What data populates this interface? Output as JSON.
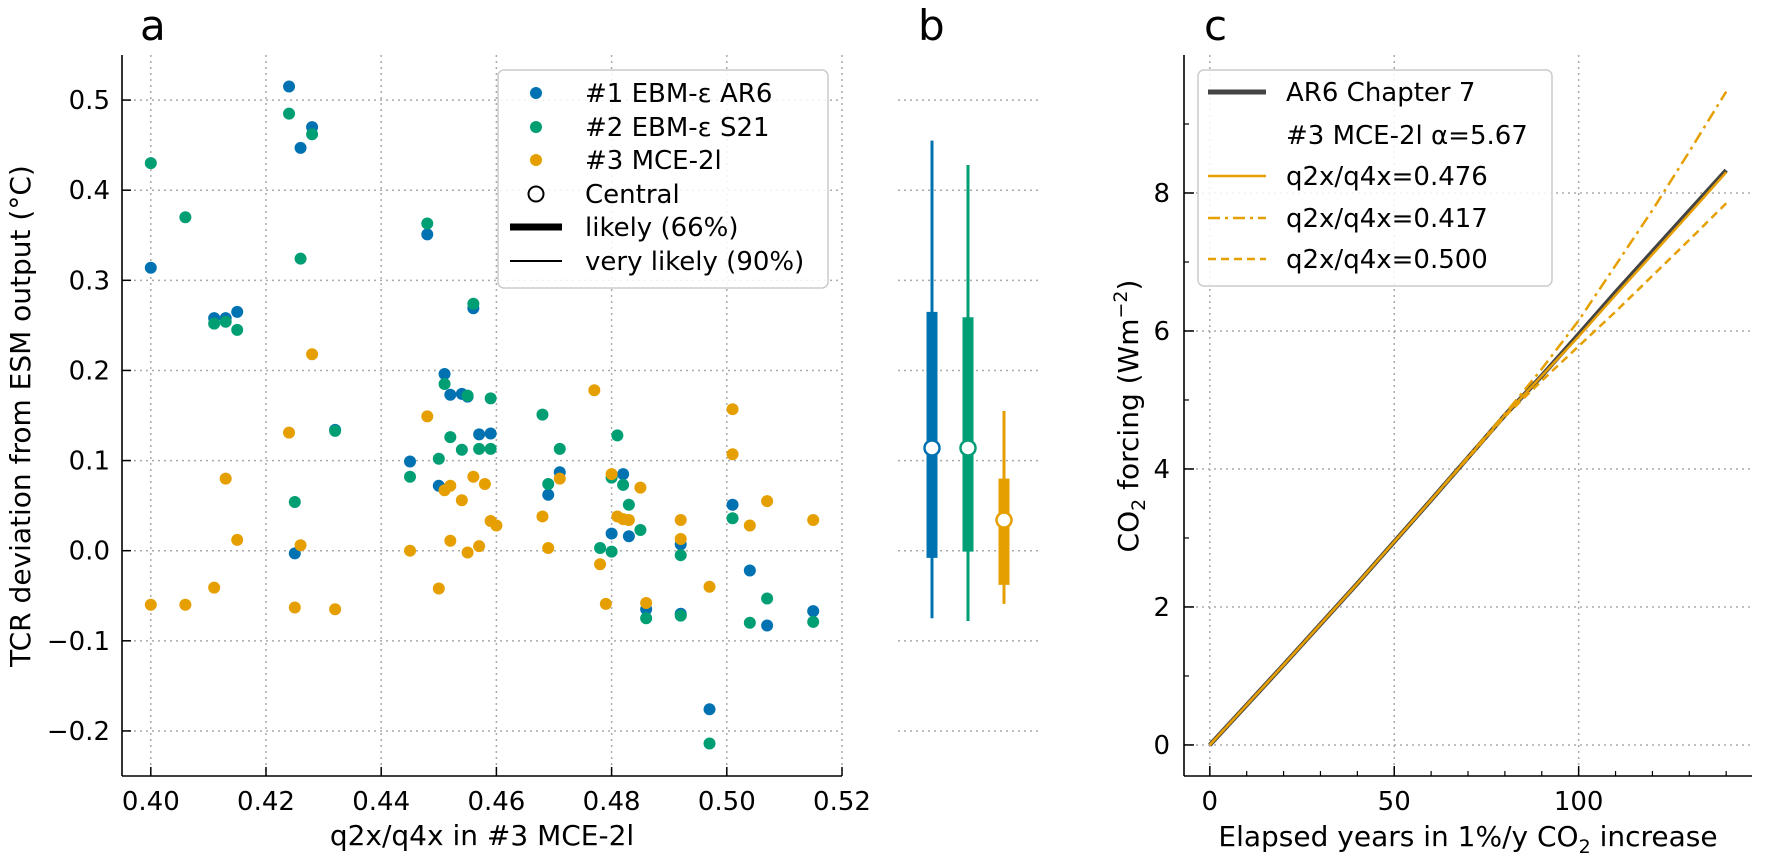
{
  "colors": {
    "ar6": "#0072b2",
    "s21": "#009e73",
    "mce": "#e69f00",
    "ar6_line": "#444444",
    "grid": "#aaaaaa"
  },
  "panel_a": {
    "letter": "a",
    "xlabel": "q2x/q4x in #3 MCE-2l",
    "ylabel": "TCR deviation from ESM output (°C)",
    "legend": {
      "items": [
        {
          "label": "#1 EBM-ε AR6",
          "marker": "dot",
          "color": "#0072b2"
        },
        {
          "label": "#2 EBM-ε S21",
          "marker": "dot",
          "color": "#009e73"
        },
        {
          "label": "#3 MCE-2l",
          "marker": "dot",
          "color": "#e69f00"
        },
        {
          "label": "Central",
          "marker": "open-circle",
          "color": "#000000"
        },
        {
          "label": "likely (66%)",
          "marker": "thick-line",
          "color": "#000000"
        },
        {
          "label": "very likely (90%)",
          "marker": "thin-line",
          "color": "#000000"
        }
      ]
    }
  },
  "panel_b": {
    "letter": "b"
  },
  "panel_c": {
    "letter": "c",
    "xlabel": "Elapsed years in 1%/y CO",
    "xlabel_sub": "2",
    "xlabel_tail": " increase",
    "ylabel": "CO",
    "ylabel_sub": "2",
    "ylabel_tail": " forcing (Wm",
    "ylabel_sup": "−2",
    "ylabel_end": ")",
    "legend": {
      "items": [
        {
          "label": "AR6 Chapter 7",
          "style": "thick",
          "color": "#444444"
        },
        {
          "label": "#3 MCE-2l α=5.67",
          "style": "none",
          "color": "#ffffff"
        },
        {
          "label": "q2x/q4x=0.476",
          "style": "solid",
          "color": "#e69f00"
        },
        {
          "label": "q2x/q4x=0.417",
          "style": "dashdot",
          "color": "#e69f00"
        },
        {
          "label": "q2x/q4x=0.500",
          "style": "dashed",
          "color": "#e69f00"
        }
      ]
    }
  },
  "chart_data": [
    {
      "type": "scatter",
      "xlim": [
        0.395,
        0.52
      ],
      "ylim": [
        -0.25,
        0.55
      ],
      "xticks": [
        "0.40",
        "0.42",
        "0.44",
        "0.46",
        "0.48",
        "0.50",
        "0.52"
      ],
      "yticks": [
        "−0.2",
        "−0.1",
        "0.0",
        "0.1",
        "0.2",
        "0.3",
        "0.4",
        "0.5"
      ],
      "xtick_values": [
        0.4,
        0.42,
        0.44,
        0.46,
        0.48,
        0.5,
        0.52
      ],
      "ytick_values": [
        -0.2,
        -0.1,
        0.0,
        0.1,
        0.2,
        0.3,
        0.4,
        0.5
      ],
      "grid": true,
      "legend": "top-right",
      "series": [
        {
          "name": "#1 EBM-ε AR6",
          "points": [
            [
              0.4,
              0.314
            ],
            [
              0.411,
              0.258
            ],
            [
              0.413,
              0.258
            ],
            [
              0.415,
              0.265
            ],
            [
              0.424,
              0.515
            ],
            [
              0.425,
              -0.003
            ],
            [
              0.426,
              0.447
            ],
            [
              0.428,
              0.47
            ],
            [
              0.432,
              0.134
            ],
            [
              0.445,
              0.099
            ],
            [
              0.448,
              0.351
            ],
            [
              0.45,
              0.072
            ],
            [
              0.451,
              0.196
            ],
            [
              0.452,
              0.173
            ],
            [
              0.454,
              0.174
            ],
            [
              0.455,
              0.171
            ],
            [
              0.456,
              0.269
            ],
            [
              0.457,
              0.129
            ],
            [
              0.459,
              0.13
            ],
            [
              0.469,
              0.062
            ],
            [
              0.471,
              0.087
            ],
            [
              0.48,
              0.019
            ],
            [
              0.482,
              0.085
            ],
            [
              0.483,
              0.016
            ],
            [
              0.486,
              -0.065
            ],
            [
              0.492,
              0.007
            ],
            [
              0.492,
              -0.07
            ],
            [
              0.497,
              -0.176
            ],
            [
              0.501,
              0.051
            ],
            [
              0.504,
              -0.022
            ],
            [
              0.507,
              -0.083
            ],
            [
              0.515,
              -0.067
            ]
          ]
        },
        {
          "name": "#2 EBM-ε S21",
          "points": [
            [
              0.4,
              0.43
            ],
            [
              0.406,
              0.37
            ],
            [
              0.411,
              0.252
            ],
            [
              0.413,
              0.254
            ],
            [
              0.415,
              0.245
            ],
            [
              0.424,
              0.485
            ],
            [
              0.425,
              0.054
            ],
            [
              0.426,
              0.324
            ],
            [
              0.428,
              0.462
            ],
            [
              0.432,
              0.133
            ],
            [
              0.445,
              0.082
            ],
            [
              0.448,
              0.363
            ],
            [
              0.45,
              0.102
            ],
            [
              0.451,
              0.185
            ],
            [
              0.452,
              0.126
            ],
            [
              0.454,
              0.112
            ],
            [
              0.455,
              0.172
            ],
            [
              0.456,
              0.274
            ],
            [
              0.457,
              0.113
            ],
            [
              0.459,
              0.169
            ],
            [
              0.459,
              0.113
            ],
            [
              0.468,
              0.151
            ],
            [
              0.469,
              0.074
            ],
            [
              0.471,
              0.113
            ],
            [
              0.478,
              0.003
            ],
            [
              0.48,
              0.081
            ],
            [
              0.48,
              -0.001
            ],
            [
              0.481,
              0.128
            ],
            [
              0.482,
              0.073
            ],
            [
              0.483,
              0.051
            ],
            [
              0.485,
              0.023
            ],
            [
              0.486,
              -0.075
            ],
            [
              0.492,
              -0.005
            ],
            [
              0.492,
              -0.072
            ],
            [
              0.497,
              -0.214
            ],
            [
              0.501,
              0.036
            ],
            [
              0.504,
              -0.08
            ],
            [
              0.507,
              -0.053
            ],
            [
              0.515,
              -0.079
            ]
          ]
        },
        {
          "name": "#3 MCE-2l",
          "points": [
            [
              0.4,
              -0.06
            ],
            [
              0.406,
              -0.06
            ],
            [
              0.411,
              -0.041
            ],
            [
              0.413,
              0.08
            ],
            [
              0.415,
              0.012
            ],
            [
              0.424,
              0.131
            ],
            [
              0.425,
              -0.063
            ],
            [
              0.426,
              0.006
            ],
            [
              0.428,
              0.218
            ],
            [
              0.432,
              -0.065
            ],
            [
              0.445,
              0.0
            ],
            [
              0.448,
              0.149
            ],
            [
              0.45,
              -0.042
            ],
            [
              0.451,
              0.067
            ],
            [
              0.452,
              0.072
            ],
            [
              0.452,
              0.011
            ],
            [
              0.454,
              0.056
            ],
            [
              0.455,
              -0.002
            ],
            [
              0.456,
              0.082
            ],
            [
              0.457,
              0.005
            ],
            [
              0.458,
              0.074
            ],
            [
              0.459,
              0.033
            ],
            [
              0.46,
              0.028
            ],
            [
              0.468,
              0.038
            ],
            [
              0.469,
              0.003
            ],
            [
              0.471,
              0.08
            ],
            [
              0.477,
              0.178
            ],
            [
              0.478,
              -0.015
            ],
            [
              0.479,
              -0.059
            ],
            [
              0.48,
              0.085
            ],
            [
              0.481,
              0.038
            ],
            [
              0.482,
              0.035
            ],
            [
              0.483,
              0.034
            ],
            [
              0.485,
              0.07
            ],
            [
              0.486,
              -0.058
            ],
            [
              0.492,
              0.034
            ],
            [
              0.492,
              0.013
            ],
            [
              0.497,
              -0.04
            ],
            [
              0.501,
              0.157
            ],
            [
              0.501,
              0.107
            ],
            [
              0.504,
              0.028
            ],
            [
              0.507,
              0.055
            ],
            [
              0.515,
              0.034
            ]
          ]
        }
      ]
    },
    {
      "type": "range",
      "ylim": [
        -0.25,
        0.55
      ],
      "series": [
        {
          "name": "#1 EBM-ε AR6",
          "central": 0.114,
          "likely": [
            -0.008,
            0.265
          ],
          "very_likely": [
            -0.075,
            0.455
          ]
        },
        {
          "name": "#2 EBM-ε S21",
          "central": 0.114,
          "likely": [
            -0.001,
            0.259
          ],
          "very_likely": [
            -0.078,
            0.428
          ]
        },
        {
          "name": "#3 MCE-2l",
          "central": 0.034,
          "likely": [
            -0.038,
            0.08
          ],
          "very_likely": [
            -0.059,
            0.155
          ]
        }
      ]
    },
    {
      "type": "line",
      "xlim": [
        -7,
        147
      ],
      "ylim": [
        -0.45,
        10
      ],
      "xticks": [
        "0",
        "50",
        "100"
      ],
      "yticks": [
        "0",
        "2",
        "4",
        "6",
        "8"
      ],
      "xtick_values": [
        0,
        50,
        100
      ],
      "ytick_values": [
        0,
        2,
        4,
        6,
        8
      ],
      "grid": true,
      "legend": "top-left",
      "series": [
        {
          "name": "AR6 Chapter 7",
          "x": [
            0,
            20,
            40,
            60,
            80,
            90,
            100,
            110,
            120,
            130,
            140
          ],
          "y": [
            0,
            1.16,
            2.34,
            3.55,
            4.78,
            5.35,
            5.95,
            6.56,
            7.15,
            7.74,
            8.33
          ]
        },
        {
          "name": "q2x/q4x=0.476",
          "x": [
            0,
            20,
            40,
            60,
            80,
            90,
            100,
            110,
            120,
            130,
            140
          ],
          "y": [
            0,
            1.16,
            2.34,
            3.55,
            4.78,
            5.35,
            5.92,
            6.52,
            7.11,
            7.7,
            8.3
          ]
        },
        {
          "name": "q2x/q4x=0.417",
          "x": [
            0,
            20,
            40,
            60,
            80,
            90,
            100,
            110,
            120,
            130,
            140
          ],
          "y": [
            0,
            1.16,
            2.34,
            3.55,
            4.8,
            5.45,
            6.15,
            6.95,
            7.75,
            8.6,
            9.47
          ]
        },
        {
          "name": "q2x/q4x=0.500",
          "x": [
            0,
            20,
            40,
            60,
            80,
            90,
            100,
            110,
            120,
            130,
            140
          ],
          "y": [
            0,
            1.16,
            2.34,
            3.55,
            4.76,
            5.28,
            5.78,
            6.28,
            6.8,
            7.32,
            7.85
          ]
        }
      ]
    }
  ]
}
